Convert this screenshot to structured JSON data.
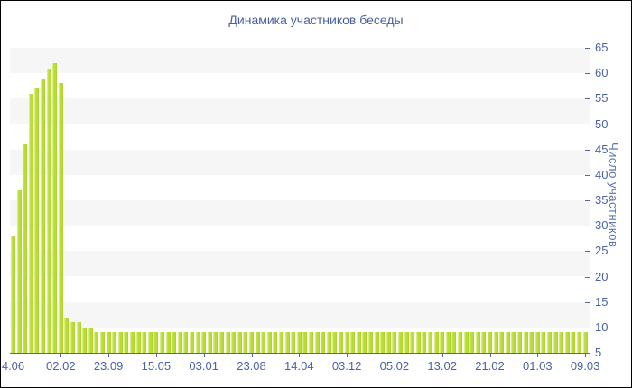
{
  "title": "Динамика участников беседы",
  "chart_data": {
    "type": "bar",
    "title": "Динамика участников беседы",
    "xlabel": "",
    "ylabel": "Число участников",
    "ylim": [
      5,
      65
    ],
    "y_axis_side": "right",
    "yticks": [
      5,
      10,
      15,
      20,
      25,
      30,
      35,
      40,
      45,
      50,
      55,
      60,
      65
    ],
    "grid": "alternating-horizontal-bands",
    "legend": "none",
    "band_intervals": [
      [
        10,
        15
      ],
      [
        20,
        25
      ],
      [
        30,
        35
      ],
      [
        40,
        45
      ],
      [
        50,
        55
      ],
      [
        60,
        65
      ]
    ],
    "xtick_labels": [
      "4.06",
      "02.02",
      "23.09",
      "15.05",
      "03.01",
      "23.08",
      "14.04",
      "03.12",
      "05.02",
      "13.02",
      "21.02",
      "01.03",
      "09.03"
    ],
    "bars_per_xtick": 8,
    "values": [
      28,
      37,
      46,
      56,
      57,
      59,
      61,
      62,
      58,
      12,
      11,
      11,
      10,
      10,
      9,
      9,
      9,
      9,
      9,
      9,
      9,
      9,
      9,
      9,
      9,
      9,
      9,
      9,
      9,
      9,
      9,
      9,
      9,
      9,
      9,
      9,
      9,
      9,
      9,
      9,
      9,
      9,
      9,
      9,
      9,
      9,
      9,
      9,
      9,
      9,
      9,
      9,
      9,
      9,
      9,
      9,
      9,
      9,
      9,
      9,
      9,
      9,
      9,
      9,
      9,
      9,
      9,
      9,
      9,
      9,
      9,
      9,
      9,
      9,
      9,
      9,
      9,
      9,
      9,
      9,
      9,
      9,
      9,
      9,
      9,
      9,
      9,
      9,
      9,
      9,
      9,
      9,
      9,
      9,
      9,
      9,
      9
    ]
  },
  "colors": {
    "bar_main": "#b7dc32",
    "bar_highlight": "#d9ec8c",
    "bar_shadow": "#a6cf27",
    "band": "#f6f6f6",
    "axis": "#54689f",
    "tick_text": "#4a63a5",
    "title_text": "#4a5f9e",
    "y_title_text": "#5f74b0",
    "background": "#ffffff",
    "border": "#000000"
  }
}
